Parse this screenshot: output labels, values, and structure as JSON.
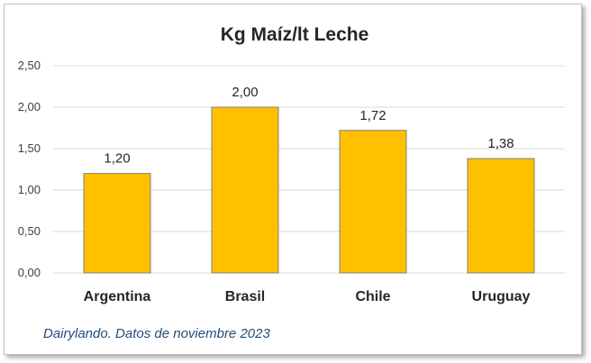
{
  "chart_data": {
    "type": "bar",
    "title": "Kg Maíz/lt Leche",
    "categories": [
      "Argentina",
      "Brasil",
      "Chile",
      "Uruguay"
    ],
    "values": [
      1.2,
      2.0,
      1.72,
      1.38
    ],
    "data_labels": [
      "1,20",
      "2,00",
      "1,72",
      "1,38"
    ],
    "ylim": [
      0,
      2.5
    ],
    "yticks": [
      0,
      0.5,
      1.0,
      1.5,
      2.0,
      2.5
    ],
    "ytick_labels": [
      "0,00",
      "0,50",
      "1,00",
      "1,50",
      "2,00",
      "2,50"
    ],
    "xlabel": "",
    "ylabel": "",
    "grid": true,
    "bar_color": "#FFC000",
    "source_note": "Dairylando. Datos de noviembre 2023"
  }
}
